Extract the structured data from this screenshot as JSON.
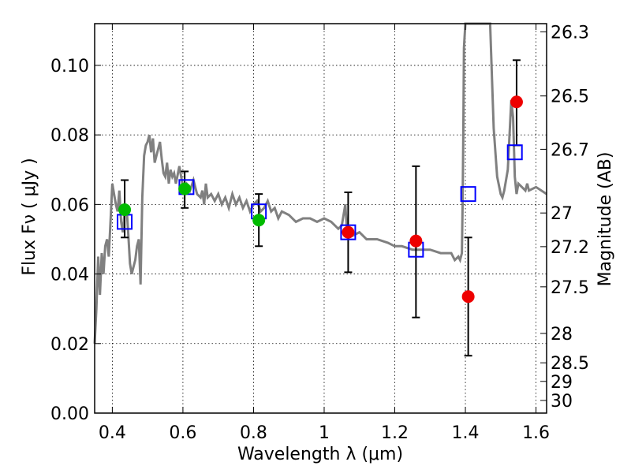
{
  "chart_data": {
    "type": "scatter",
    "xlabel": "Wavelength  λ (μm)",
    "ylabel": "Flux  Fν  ( μJy )",
    "ylabel_right": "Magnitude (AB)",
    "xlim": [
      0.35,
      1.63
    ],
    "ylim": [
      0.0,
      0.112
    ],
    "grid": true,
    "x_ticks": [
      0.4,
      0.6,
      0.8,
      1.0,
      1.2,
      1.4,
      1.6
    ],
    "x_tick_labels": [
      "0.4",
      "0.6",
      "0.8",
      "1",
      "1.2",
      "1.4",
      "1.6"
    ],
    "y_ticks": [
      0.0,
      0.02,
      0.04,
      0.06,
      0.08,
      0.1
    ],
    "y_tick_labels": [
      "0.00",
      "0.02",
      "0.04",
      "0.06",
      "0.08",
      "0.10"
    ],
    "right_ticks": [
      {
        "mag": 26.3,
        "label": "26.3"
      },
      {
        "mag": 26.5,
        "label": "26.5"
      },
      {
        "mag": 26.7,
        "label": "26.7"
      },
      {
        "mag": 27.0,
        "label": "27"
      },
      {
        "mag": 27.2,
        "label": "27.2"
      },
      {
        "mag": 27.5,
        "label": "27.5"
      },
      {
        "mag": 28.0,
        "label": "28"
      },
      {
        "mag": 28.5,
        "label": "28.5"
      },
      {
        "mag": 29.0,
        "label": "29"
      },
      {
        "mag": 30.0,
        "label": "30"
      }
    ],
    "colors": {
      "template": "#808080",
      "model_box": "#0000ff",
      "green_points": "#00bb00",
      "red_points": "#ee0000",
      "errorbars": "#000000"
    },
    "template_sed": {
      "x": [
        0.35,
        0.355,
        0.36,
        0.365,
        0.37,
        0.375,
        0.38,
        0.385,
        0.39,
        0.395,
        0.4,
        0.405,
        0.41,
        0.415,
        0.42,
        0.425,
        0.43,
        0.435,
        0.44,
        0.445,
        0.45,
        0.455,
        0.46,
        0.465,
        0.47,
        0.475,
        0.48,
        0.485,
        0.49,
        0.495,
        0.5,
        0.505,
        0.51,
        0.515,
        0.52,
        0.525,
        0.53,
        0.535,
        0.54,
        0.545,
        0.55,
        0.555,
        0.56,
        0.565,
        0.57,
        0.575,
        0.58,
        0.59,
        0.6,
        0.61,
        0.62,
        0.63,
        0.64,
        0.65,
        0.655,
        0.66,
        0.665,
        0.67,
        0.68,
        0.69,
        0.7,
        0.71,
        0.72,
        0.73,
        0.74,
        0.75,
        0.76,
        0.77,
        0.78,
        0.79,
        0.8,
        0.81,
        0.82,
        0.83,
        0.84,
        0.85,
        0.86,
        0.87,
        0.88,
        0.9,
        0.92,
        0.94,
        0.96,
        0.98,
        1.0,
        1.02,
        1.04,
        1.05,
        1.06,
        1.065,
        1.07,
        1.08,
        1.1,
        1.12,
        1.15,
        1.18,
        1.2,
        1.22,
        1.25,
        1.28,
        1.3,
        1.33,
        1.36,
        1.37,
        1.38,
        1.385,
        1.39,
        1.392,
        1.394,
        1.396,
        1.4,
        1.41,
        1.42,
        1.43,
        1.44,
        1.45,
        1.46,
        1.47,
        1.48,
        1.49,
        1.5,
        1.505,
        1.51,
        1.52,
        1.53,
        1.535,
        1.54,
        1.545,
        1.55,
        1.56,
        1.57,
        1.575,
        1.58,
        1.6,
        1.63
      ],
      "y": [
        0.02,
        0.03,
        0.045,
        0.034,
        0.046,
        0.04,
        0.048,
        0.05,
        0.045,
        0.055,
        0.066,
        0.063,
        0.06,
        0.058,
        0.064,
        0.055,
        0.052,
        0.058,
        0.06,
        0.052,
        0.043,
        0.04,
        0.042,
        0.044,
        0.048,
        0.05,
        0.037,
        0.062,
        0.074,
        0.077,
        0.078,
        0.08,
        0.075,
        0.079,
        0.072,
        0.074,
        0.076,
        0.078,
        0.073,
        0.069,
        0.068,
        0.072,
        0.066,
        0.07,
        0.068,
        0.069,
        0.066,
        0.071,
        0.065,
        0.066,
        0.064,
        0.067,
        0.063,
        0.062,
        0.064,
        0.06,
        0.066,
        0.062,
        0.063,
        0.061,
        0.063,
        0.06,
        0.062,
        0.059,
        0.063,
        0.06,
        0.062,
        0.059,
        0.061,
        0.058,
        0.06,
        0.061,
        0.058,
        0.059,
        0.061,
        0.058,
        0.059,
        0.056,
        0.058,
        0.057,
        0.055,
        0.056,
        0.056,
        0.055,
        0.056,
        0.055,
        0.053,
        0.054,
        0.06,
        0.052,
        0.053,
        0.051,
        0.052,
        0.05,
        0.05,
        0.049,
        0.048,
        0.048,
        0.047,
        0.047,
        0.047,
        0.046,
        0.046,
        0.044,
        0.045,
        0.044,
        0.046,
        0.06,
        0.08,
        0.105,
        0.112,
        0.112,
        0.112,
        0.112,
        0.112,
        0.112,
        0.112,
        0.112,
        0.082,
        0.068,
        0.063,
        0.062,
        0.064,
        0.07,
        0.09,
        0.085,
        0.068,
        0.063,
        0.066,
        0.065,
        0.064,
        0.066,
        0.064,
        0.065,
        0.063
      ],
      "color": "#808080"
    },
    "series": [
      {
        "name": "model_bands",
        "marker": "open-square",
        "x": [
          0.435,
          0.61,
          0.815,
          1.068,
          1.26,
          1.408,
          1.54
        ],
        "y": [
          0.055,
          0.065,
          0.058,
          0.052,
          0.047,
          0.063,
          0.075
        ]
      },
      {
        "name": "observed_green",
        "marker": "filled-circle",
        "x": [
          0.435,
          0.605,
          0.815
        ],
        "y": [
          0.0585,
          0.0645,
          0.0555
        ],
        "yerr_low": [
          0.0505,
          0.059,
          0.048
        ],
        "yerr_high": [
          0.067,
          0.0695,
          0.063
        ]
      },
      {
        "name": "observed_red",
        "marker": "filled-circle",
        "x": [
          1.068,
          1.26,
          1.408,
          1.545
        ],
        "y": [
          0.052,
          0.0495,
          0.0335,
          0.0895
        ],
        "yerr_low": [
          0.0405,
          0.0275,
          0.0165,
          0.077
        ],
        "yerr_high": [
          0.0635,
          0.071,
          0.0505,
          0.1015
        ]
      }
    ]
  }
}
